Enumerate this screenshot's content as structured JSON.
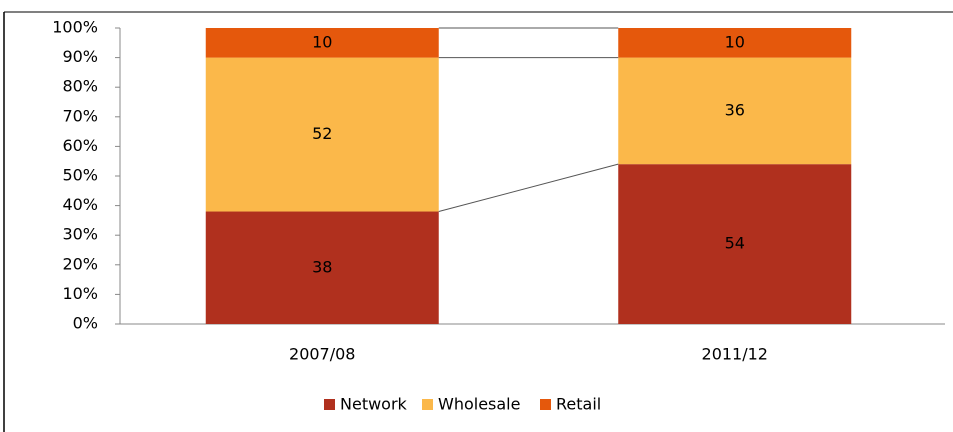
{
  "chart_data": {
    "type": "stacked_bar",
    "categories": [
      "2007/08",
      "2011/12"
    ],
    "series": [
      {
        "name": "Network",
        "color": "#b0301e",
        "values": [
          38,
          54
        ]
      },
      {
        "name": "Wholesale",
        "color": "#fbb84a",
        "values": [
          52,
          36
        ]
      },
      {
        "name": "Retail",
        "color": "#e5580c",
        "values": [
          10,
          10
        ]
      }
    ],
    "ylim": [
      0,
      100
    ],
    "yticks": [
      {
        "value": 0,
        "label": "0%"
      },
      {
        "value": 10,
        "label": "10%"
      },
      {
        "value": 20,
        "label": "20%"
      },
      {
        "value": 30,
        "label": "30%"
      },
      {
        "value": 40,
        "label": "40%"
      },
      {
        "value": 50,
        "label": "50%"
      },
      {
        "value": 60,
        "label": "60%"
      },
      {
        "value": 70,
        "label": "70%"
      },
      {
        "value": 80,
        "label": "80%"
      },
      {
        "value": 90,
        "label": "90%"
      },
      {
        "value": 100,
        "label": "100%"
      }
    ],
    "legend": "bottom"
  }
}
